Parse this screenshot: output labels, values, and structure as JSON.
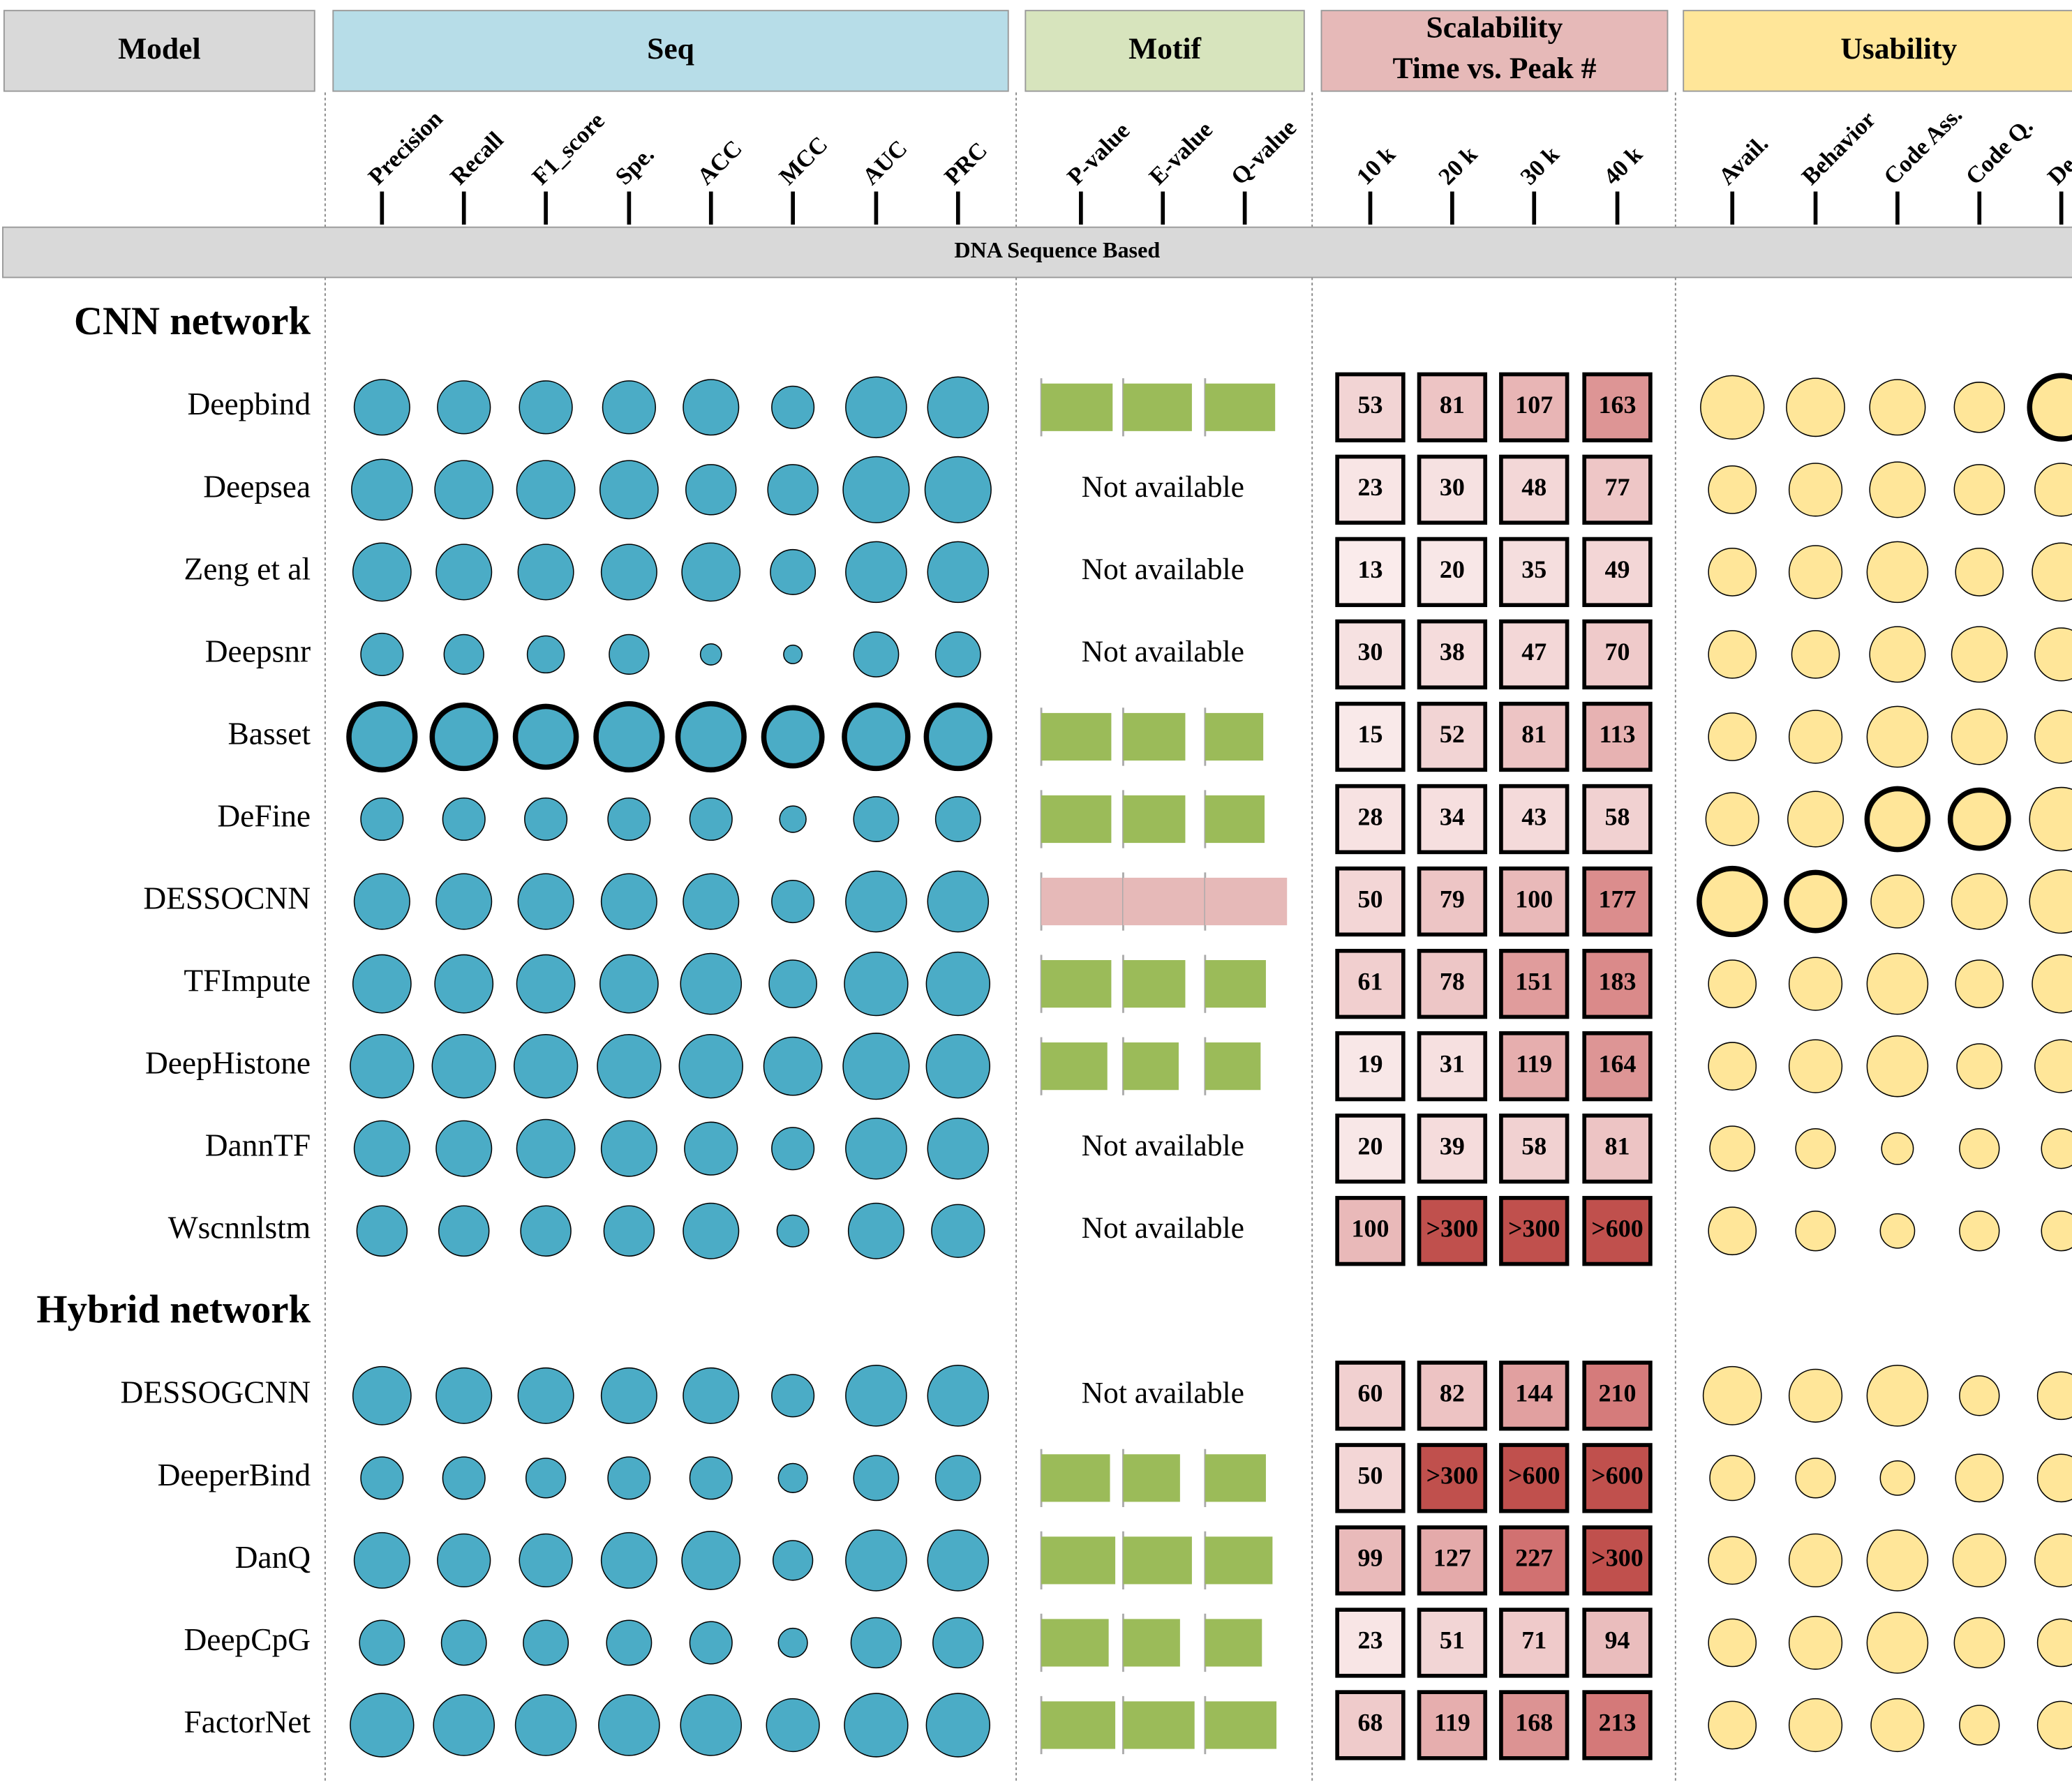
{
  "headers": {
    "model": "Model",
    "seq": "Seq",
    "motif": "Motif",
    "scalability": [
      "Scalability",
      "Time vs. Peak #"
    ],
    "usability": "Usability"
  },
  "metrics": {
    "seq": [
      "Precision",
      "Recall",
      "F1_score",
      "Spe.",
      "ACC",
      "MCC",
      "AUC",
      "PRC"
    ],
    "motif": [
      "P-value",
      "E-value",
      "Q-value"
    ],
    "scalability": [
      "10 k",
      "20 k",
      "30 k",
      "40 k"
    ],
    "usability": [
      "Avail.",
      "Behavior",
      "Code Ass.",
      "Code Q.",
      "De"
    ]
  },
  "band": "DNA Sequence Based",
  "colors": {
    "seq": "#4bacc6",
    "usability": "#ffe699",
    "motif": "#9bbb59"
  },
  "sections": [
    {
      "title": "CNN network",
      "models": [
        {
          "name": "Deepbind",
          "seq": [
            42,
            40,
            40,
            40,
            42,
            32,
            46,
            46
          ],
          "motif": [
            54,
            52,
            53
          ],
          "scalability": [
            53,
            81,
            107,
            163
          ],
          "usability": [
            48,
            44,
            42,
            38,
            48
          ],
          "usability_outline": [
            false,
            false,
            false,
            false,
            true
          ]
        },
        {
          "name": "Deepsea",
          "seq": [
            46,
            44,
            44,
            44,
            38,
            38,
            50,
            50
          ],
          "motif_text": "Not available",
          "scalability": [
            23,
            30,
            48,
            77
          ],
          "usability": [
            36,
            40,
            42,
            38,
            40
          ]
        },
        {
          "name": "Zeng et al",
          "seq": [
            44,
            42,
            42,
            42,
            44,
            34,
            46,
            46
          ],
          "motif_text": "Not available",
          "scalability": [
            13,
            20,
            35,
            49
          ],
          "usability": [
            36,
            40,
            46,
            36,
            44
          ]
        },
        {
          "name": "Deepsnr",
          "seq": [
            32,
            30,
            28,
            30,
            16,
            14,
            34,
            34
          ],
          "motif_text": "Not available",
          "scalability": [
            30,
            38,
            47,
            70
          ],
          "usability": [
            36,
            36,
            42,
            42,
            40
          ]
        },
        {
          "name": "Basset",
          "seq": [
            50,
            48,
            46,
            50,
            50,
            44,
            48,
            48
          ],
          "seq_outline": true,
          "motif": [
            53,
            47,
            44
          ],
          "scalability": [
            15,
            52,
            81,
            113
          ],
          "usability": [
            36,
            40,
            46,
            42,
            40
          ]
        },
        {
          "name": "DeFine",
          "seq": [
            32,
            32,
            32,
            32,
            32,
            20,
            34,
            34
          ],
          "motif": [
            53,
            47,
            45
          ],
          "scalability": [
            28,
            34,
            43,
            58
          ],
          "usability": [
            40,
            42,
            46,
            44,
            48
          ],
          "usability_outline": [
            false,
            false,
            true,
            true,
            false
          ]
        },
        {
          "name": "DESSOCNN",
          "seq": [
            42,
            42,
            42,
            42,
            42,
            32,
            46,
            46
          ],
          "motif": [
            62,
            62,
            62
          ],
          "motif_color": "#e6b9b8",
          "scalability": [
            50,
            79,
            100,
            177
          ],
          "usability": [
            50,
            44,
            40,
            42,
            48
          ],
          "usability_outline": [
            true,
            true,
            false,
            false,
            false
          ]
        },
        {
          "name": "TFImpute",
          "seq": [
            44,
            44,
            44,
            44,
            46,
            36,
            48,
            48
          ],
          "motif": [
            53,
            47,
            46
          ],
          "scalability": [
            61,
            78,
            151,
            183
          ],
          "usability": [
            36,
            40,
            46,
            36,
            44
          ]
        },
        {
          "name": "DeepHistone",
          "seq": [
            48,
            48,
            48,
            48,
            48,
            44,
            50,
            48
          ],
          "motif": [
            50,
            42,
            42
          ],
          "scalability": [
            19,
            31,
            119,
            164
          ],
          "usability": [
            36,
            40,
            46,
            34,
            40
          ]
        },
        {
          "name": "DannTF",
          "seq": [
            42,
            42,
            44,
            42,
            40,
            32,
            46,
            46
          ],
          "motif_text": "Not available",
          "scalability": [
            20,
            39,
            58,
            81
          ],
          "usability": [
            34,
            30,
            24,
            30,
            30
          ]
        },
        {
          "name": "Wscnnlstm",
          "seq": [
            38,
            38,
            38,
            38,
            42,
            24,
            42,
            40
          ],
          "motif_text": "Not available",
          "scalability": [
            100,
            ">300",
            ">300",
            ">600"
          ],
          "usability": [
            36,
            30,
            26,
            30,
            30
          ]
        }
      ]
    },
    {
      "title": "Hybrid network",
      "models": [
        {
          "name": "DESSOGCNN",
          "seq": [
            44,
            42,
            42,
            42,
            42,
            32,
            46,
            46
          ],
          "motif_text": "Not available",
          "scalability": [
            60,
            82,
            144,
            210
          ],
          "usability": [
            44,
            40,
            46,
            30,
            36
          ]
        },
        {
          "name": "DeeperBind",
          "seq": [
            32,
            32,
            30,
            32,
            32,
            22,
            34,
            34
          ],
          "motif": [
            52,
            43,
            46
          ],
          "scalability": [
            50,
            ">300",
            ">600",
            ">600"
          ],
          "usability": [
            34,
            30,
            26,
            36,
            36
          ]
        },
        {
          "name": "DanQ",
          "seq": [
            42,
            40,
            40,
            42,
            44,
            30,
            46,
            46
          ],
          "motif": [
            56,
            52,
            51
          ],
          "scalability": [
            99,
            127,
            227,
            ">300"
          ],
          "usability": [
            36,
            40,
            46,
            40,
            40
          ]
        },
        {
          "name": "DeepCpG",
          "seq": [
            34,
            34,
            34,
            34,
            32,
            22,
            38,
            38
          ],
          "motif": [
            51,
            43,
            43
          ],
          "scalability": [
            23,
            51,
            71,
            94
          ],
          "usability": [
            36,
            40,
            46,
            38,
            36
          ]
        },
        {
          "name": "FactorNet",
          "seq": [
            48,
            46,
            46,
            46,
            46,
            40,
            48,
            48
          ],
          "motif": [
            56,
            54,
            54
          ],
          "scalability": [
            68,
            119,
            168,
            213
          ],
          "usability": [
            36,
            40,
            40,
            30,
            36
          ]
        }
      ]
    }
  ]
}
